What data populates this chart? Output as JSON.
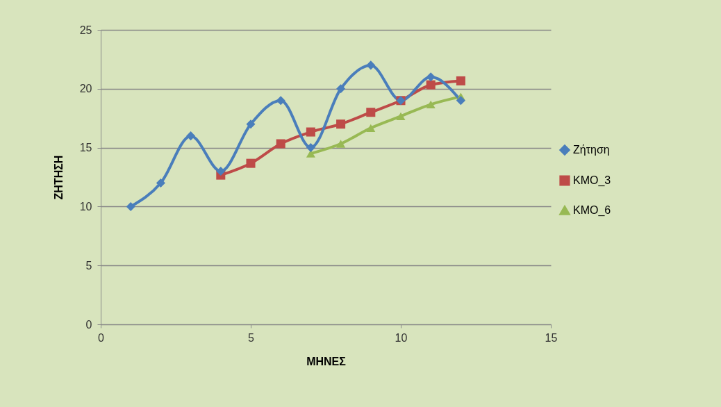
{
  "chart_data": {
    "type": "line",
    "xlabel": "ΜΗΝΕΣ",
    "ylabel": "ΖΗΤΗΣΗ",
    "series": [
      {
        "name": "Ζήτηση",
        "color": "#4a7ebb",
        "marker": "diamond",
        "x": [
          1,
          2,
          3,
          4,
          5,
          6,
          7,
          8,
          9,
          10,
          11,
          12
        ],
        "values": [
          10,
          12,
          16,
          13,
          17,
          19,
          15,
          20,
          22,
          19,
          21,
          19
        ]
      },
      {
        "name": "ΚΜΟ_3",
        "color": "#be4b48",
        "marker": "square",
        "x": [
          4,
          5,
          6,
          7,
          8,
          9,
          10,
          11,
          12
        ],
        "values": [
          12.67,
          13.67,
          15.33,
          16.33,
          17,
          18,
          19,
          20.33,
          20.67
        ]
      },
      {
        "name": "ΚΜΟ_6",
        "color": "#98b954",
        "marker": "triangle",
        "x": [
          7,
          8,
          9,
          10,
          11,
          12
        ],
        "values": [
          14.5,
          15.33,
          16.67,
          17.67,
          18.67,
          19.33
        ]
      }
    ],
    "xlim": [
      0,
      15
    ],
    "xticks": [
      0,
      5,
      10,
      15
    ],
    "ylim": [
      0,
      25
    ],
    "yticks": [
      0,
      5,
      10,
      15,
      20,
      25
    ],
    "grid": "y",
    "legend": "right"
  }
}
